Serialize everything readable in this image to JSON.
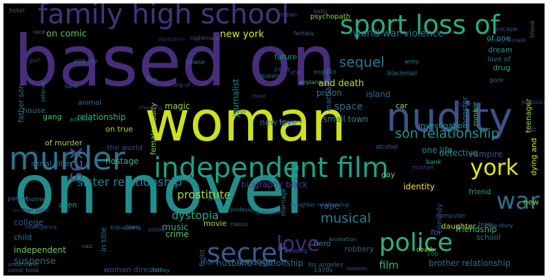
{
  "background": "#000000",
  "words": [
    {
      "text": "based on",
      "color": "#472d7b"
    },
    {
      "text": "woman",
      "color": "#cde11d"
    },
    {
      "text": "on novel",
      "color": "#218e8d"
    },
    {
      "text": "nudity",
      "color": "#3b528b"
    },
    {
      "text": "family high school",
      "color": "#46327e"
    },
    {
      "text": "sport loss of",
      "color": "#27ad81"
    },
    {
      "text": "murder",
      "color": "#2b758e"
    },
    {
      "text": "independent film",
      "color": "#1fa088"
    },
    {
      "text": "york",
      "color": "#e5e419"
    },
    {
      "text": "secret",
      "color": "#375b8d"
    },
    {
      "text": "police",
      "color": "#2db27d"
    },
    {
      "text": "love",
      "color": "#482878"
    },
    {
      "text": "war",
      "color": "#2c728e"
    },
    {
      "text": "sex",
      "color": "#3c4f8a"
    },
    {
      "text": "sequel",
      "color": "#2a778e"
    },
    {
      "text": "son relationship",
      "color": "#1f958b"
    },
    {
      "text": "musical",
      "color": "#26828e"
    },
    {
      "text": "sister relationship",
      "color": "#25858e"
    },
    {
      "text": "prostitute",
      "color": "#a5db36"
    },
    {
      "text": "dystopia",
      "color": "#22a884"
    },
    {
      "text": "film",
      "color": "#3aba76"
    },
    {
      "text": "new york",
      "color": "#d8e219"
    },
    {
      "text": "world war violence",
      "color": "#2a788e"
    },
    {
      "text": "and death",
      "color": "#c0df25"
    },
    {
      "text": "space",
      "color": "#2d708e"
    },
    {
      "text": "small town",
      "color": "#23888e"
    },
    {
      "text": "new love",
      "color": "#2e6e8e"
    },
    {
      "text": "relationship",
      "color": "#32b67a"
    },
    {
      "text": "on comic",
      "color": "#58c765"
    },
    {
      "text": "revenge",
      "color": "#31688e"
    },
    {
      "text": "suspense",
      "color": "#2c718e"
    },
    {
      "text": "husband relationship",
      "color": "#2c728e"
    },
    {
      "text": "brother relationship",
      "color": "#2c718e"
    },
    {
      "text": "woman director",
      "color": "#3e4a89"
    },
    {
      "text": "independent",
      "color": "#6ece58"
    },
    {
      "text": "friendship",
      "color": "#2fb47c"
    },
    {
      "text": "school",
      "color": "#2a788e"
    },
    {
      "text": "hero",
      "color": "#238a8d"
    },
    {
      "text": "robbery",
      "color": "#35608d"
    },
    {
      "text": "music",
      "color": "#2db27d"
    },
    {
      "text": "crime",
      "color": "#5ec962"
    },
    {
      "text": "movie",
      "color": "#a8db34"
    },
    {
      "text": "man",
      "color": "#3b528b"
    },
    {
      "text": "war ii",
      "color": "#33638d"
    },
    {
      "text": "biography black",
      "color": "#424086"
    },
    {
      "text": "alien",
      "color": "#1fa287"
    },
    {
      "text": "hostage",
      "color": "#31b57b"
    },
    {
      "text": "the world",
      "color": "#3f4788"
    },
    {
      "text": "serial killer",
      "color": "#2c728e"
    },
    {
      "text": "of murder",
      "color": "#9dd93b"
    },
    {
      "text": "house",
      "color": "#31688e"
    },
    {
      "text": "gang",
      "color": "#4ac16d"
    },
    {
      "text": "on true",
      "color": "#a0da39"
    },
    {
      "text": "animal",
      "color": "#2d708e"
    },
    {
      "text": "magic",
      "color": "#90d743"
    },
    {
      "text": "car",
      "color": "#addc30"
    },
    {
      "text": "prison",
      "color": "#2a788e"
    },
    {
      "text": "island",
      "color": "#2e6f8e"
    },
    {
      "text": "investigation",
      "color": "#1e9d89"
    },
    {
      "text": "teenager",
      "color": "#a2da37"
    },
    {
      "text": "vampire",
      "color": "#3b528b"
    },
    {
      "text": "detective",
      "color": "#1f958b"
    },
    {
      "text": "one life",
      "color": "#238a8d"
    },
    {
      "text": "identity",
      "color": "#efe51c"
    },
    {
      "text": "friend",
      "color": "#22a785"
    },
    {
      "text": "rape",
      "color": "#39568c"
    },
    {
      "text": "drug",
      "color": "#22a884"
    },
    {
      "text": "dream",
      "color": "#1f9a8a"
    },
    {
      "text": "of one",
      "color": "#1f9f88"
    },
    {
      "text": "future",
      "color": "#1f998a"
    },
    {
      "text": "fire",
      "color": "#2d708e"
    },
    {
      "text": "gay",
      "color": "#73d056"
    },
    {
      "text": "college",
      "color": "#38588c"
    },
    {
      "text": "child",
      "color": "#2a788e"
    },
    {
      "text": "martial arts",
      "color": "#2f6c8e"
    },
    {
      "text": "journalist",
      "color": "#238a8d"
    },
    {
      "text": "female nudity",
      "color": "#8bd646"
    },
    {
      "text": "father son",
      "color": "#2b748e"
    },
    {
      "text": "monster",
      "color": "#2c718e"
    },
    {
      "text": "dying and",
      "color": "#e2e418"
    },
    {
      "text": "in title",
      "color": "#2e6f8e"
    },
    {
      "text": "fight",
      "color": "#3c508b"
    },
    {
      "text": "comedy",
      "color": "#3e4989"
    },
    {
      "text": "new",
      "color": "#95d840"
    },
    {
      "text": "daughter",
      "color": "#b2dd2d"
    },
    {
      "text": "terrorist",
      "color": "#2c738e"
    },
    {
      "text": "fbi",
      "color": "#38598c"
    },
    {
      "text": "psychopath",
      "color": "#8bd646"
    },
    {
      "text": "love of",
      "color": "#2f6c8e"
    },
    {
      "text": "zombie",
      "color": "#44bf70"
    },
    {
      "text": "nudity female",
      "color": "#3f4889"
    },
    {
      "text": "coming of",
      "color": "#3b528b"
    },
    {
      "text": "hotel",
      "color": "#3b528b"
    },
    {
      "text": "gun",
      "color": "#433e85"
    },
    {
      "text": "york city",
      "color": "#2c728e"
    },
    {
      "text": "army",
      "color": "#23898e"
    },
    {
      "text": "escape",
      "color": "#3b528b"
    },
    {
      "text": "blood",
      "color": "#31688e"
    },
    {
      "text": "veteran",
      "color": "#287d8e"
    },
    {
      "text": "obsession",
      "color": "#482979"
    },
    {
      "text": "nightmare",
      "color": "#33638d"
    },
    {
      "text": "chase",
      "color": "#2a788e"
    },
    {
      "text": "party",
      "color": "#433e85"
    },
    {
      "text": "queen",
      "color": "#2e6f8e"
    },
    {
      "text": "star",
      "color": "#404588"
    },
    {
      "text": "airplane",
      "color": "#35b779"
    },
    {
      "text": "blackmail",
      "color": "#2c728e"
    },
    {
      "text": "cheating",
      "color": "#453781"
    },
    {
      "text": "home",
      "color": "#2c728e"
    },
    {
      "text": "book",
      "color": "#2d708e"
    },
    {
      "text": "lover",
      "color": "#3f4889"
    },
    {
      "text": "stand up",
      "color": "#482475"
    },
    {
      "text": "jealousy",
      "color": "#3e4989"
    },
    {
      "text": "gore",
      "color": "#2c728e"
    },
    {
      "text": "cat",
      "color": "#3c4f8a"
    },
    {
      "text": "bank",
      "color": "#29af7f"
    },
    {
      "text": "mother",
      "color": "#46327e"
    },
    {
      "text": "alcohol",
      "color": "#2c728e"
    },
    {
      "text": "adultery",
      "color": "#2c728e"
    },
    {
      "text": "treasure",
      "color": "#2e6f8e"
    },
    {
      "text": "parent",
      "color": "#2e6e8e"
    },
    {
      "text": "prisoner",
      "color": "#2c728e"
    },
    {
      "text": "intelligence",
      "color": "#3b528b"
    },
    {
      "text": "brother sister",
      "color": "#481a6c"
    },
    {
      "text": "nazi",
      "color": "#2e6e8e"
    },
    {
      "text": "kidnapping",
      "color": "#31688e"
    },
    {
      "text": "town",
      "color": "#2d708e"
    },
    {
      "text": "soldier",
      "color": "#3e4989"
    },
    {
      "text": "president",
      "color": "#3e4a89"
    },
    {
      "text": "wedding",
      "color": "#3b528b"
    },
    {
      "text": "true story",
      "color": "#2e6f8e"
    },
    {
      "text": "computer",
      "color": "#375a8c"
    },
    {
      "text": "1970s",
      "color": "#2d708e"
    },
    {
      "text": "assassin",
      "color": "#32658e"
    },
    {
      "text": "comic book",
      "color": "#2c728e"
    },
    {
      "text": "undercover",
      "color": "#2d708e"
    },
    {
      "text": "money",
      "color": "#24868e"
    },
    {
      "text": "cop",
      "color": "#2c718e"
    },
    {
      "text": "death",
      "color": "#b5de2b"
    },
    {
      "text": "los angeles",
      "color": "#2e6e8e"
    },
    {
      "text": "daughter relationship",
      "color": "#31688e"
    },
    {
      "text": "marriage",
      "color": "#2a788e"
    },
    {
      "text": "baby",
      "color": "#3b528b"
    },
    {
      "text": "indian",
      "color": "#37598c"
    },
    {
      "text": "fantasy",
      "color": "#2f6c8e"
    },
    {
      "text": "race",
      "color": "#31688e"
    },
    {
      "text": "england",
      "color": "#2f6b8e"
    },
    {
      "text": "texas",
      "color": "#38598c"
    },
    {
      "text": "classic",
      "color": "#2c728e"
    },
    {
      "text": "professor",
      "color": "#2a788e"
    },
    {
      "text": "animation",
      "color": "#2c718e"
    }
  ]
}
